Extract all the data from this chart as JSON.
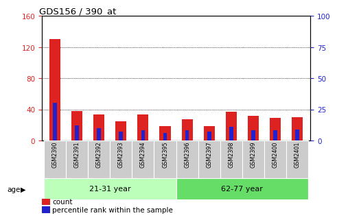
{
  "title": "GDS156 / 390_at",
  "samples": [
    "GSM2390",
    "GSM2391",
    "GSM2392",
    "GSM2393",
    "GSM2394",
    "GSM2395",
    "GSM2396",
    "GSM2397",
    "GSM2398",
    "GSM2399",
    "GSM2400",
    "GSM2401"
  ],
  "count_values": [
    130,
    38,
    33,
    25,
    33,
    18,
    27,
    18,
    37,
    32,
    29,
    30
  ],
  "percentile_values": [
    30,
    12,
    10,
    7,
    8,
    6,
    8,
    7,
    11,
    8,
    8,
    9
  ],
  "count_color": "#dd2222",
  "percentile_color": "#2222cc",
  "ylim_left": [
    0,
    160
  ],
  "ylim_right": [
    0,
    100
  ],
  "yticks_left": [
    0,
    40,
    80,
    120,
    160
  ],
  "yticks_right": [
    0,
    25,
    50,
    75,
    100
  ],
  "group1_label": "21-31 year",
  "group2_label": "62-77 year",
  "group1_indices": [
    0,
    1,
    2,
    3,
    4,
    5
  ],
  "group2_indices": [
    6,
    7,
    8,
    9,
    10,
    11
  ],
  "group1_color": "#bbffbb",
  "group2_color": "#66dd66",
  "age_label": "age",
  "legend_count": "count",
  "legend_percentile": "percentile rank within the sample",
  "background_color": "#ffffff",
  "sample_bg_color": "#cccccc"
}
